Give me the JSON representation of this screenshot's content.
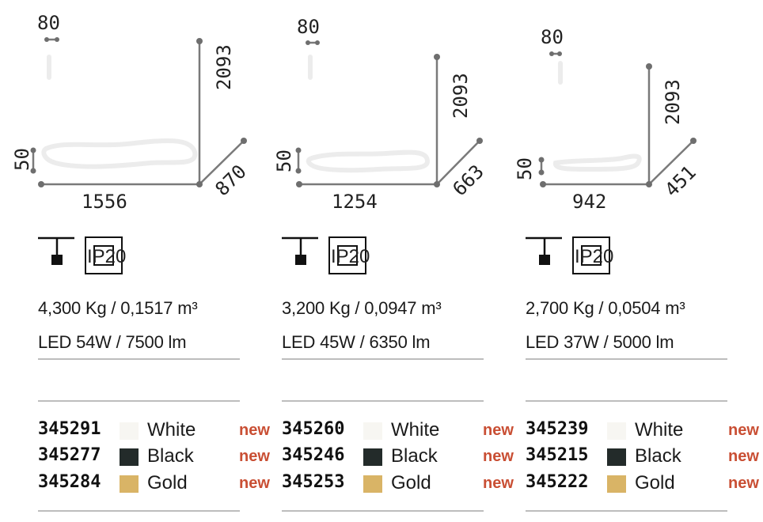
{
  "colors": {
    "accent_new": "#c94f34",
    "line_gray": "#7a7a7a",
    "swatch_white": "#f7f6f2",
    "swatch_black": "#232b2a",
    "swatch_gold": "#d9b466"
  },
  "products": [
    {
      "dimensions": {
        "diameter": "80",
        "height": "2093",
        "thickness": "50",
        "width": "1556",
        "depth": "870"
      },
      "ip_rating": "IP20",
      "weight_volume": "4,300 Kg / 0,1517 m³",
      "power_lumen": "LED 54W / 7500 lm",
      "variants": [
        {
          "code": "345291",
          "color": "White",
          "swatch": "white",
          "tag": "new"
        },
        {
          "code": "345277",
          "color": "Black",
          "swatch": "black",
          "tag": "new"
        },
        {
          "code": "345284",
          "color": "Gold",
          "swatch": "gold",
          "tag": "new"
        }
      ]
    },
    {
      "dimensions": {
        "diameter": "80",
        "height": "2093",
        "thickness": "50",
        "width": "1254",
        "depth": "663"
      },
      "ip_rating": "IP20",
      "weight_volume": "3,200 Kg / 0,0947 m³",
      "power_lumen": "LED 45W / 6350 lm",
      "variants": [
        {
          "code": "345260",
          "color": "White",
          "swatch": "white",
          "tag": "new"
        },
        {
          "code": "345246",
          "color": "Black",
          "swatch": "black",
          "tag": "new"
        },
        {
          "code": "345253",
          "color": "Gold",
          "swatch": "gold",
          "tag": "new"
        }
      ]
    },
    {
      "dimensions": {
        "diameter": "80",
        "height": "2093",
        "thickness": "50",
        "width": "942",
        "depth": "451"
      },
      "ip_rating": "IP20",
      "weight_volume": "2,700 Kg / 0,0504 m³",
      "power_lumen": "LED 37W / 5000 lm",
      "variants": [
        {
          "code": "345239",
          "color": "White",
          "swatch": "white",
          "tag": "new"
        },
        {
          "code": "345215",
          "color": "Black",
          "swatch": "black",
          "tag": "new"
        },
        {
          "code": "345222",
          "color": "Gold",
          "swatch": "gold",
          "tag": "new"
        }
      ]
    }
  ]
}
